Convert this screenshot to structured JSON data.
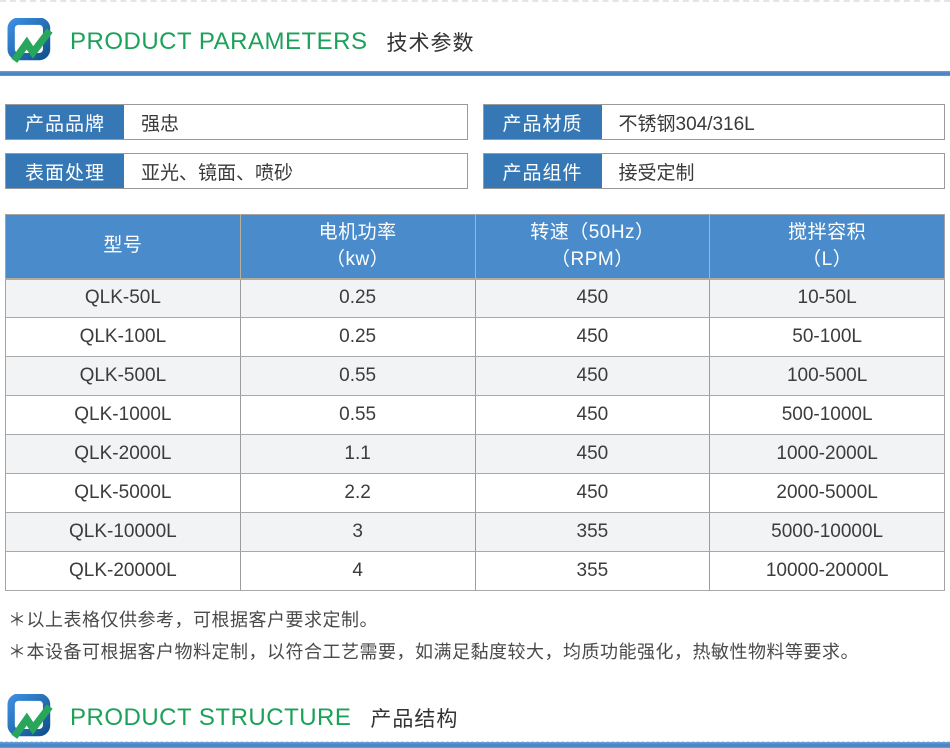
{
  "sections": {
    "parameters": {
      "title_en": "PRODUCT PARAMETERS",
      "title_zh": "技术参数"
    },
    "structure": {
      "title_en": "PRODUCT STRUCTURE",
      "title_zh": "产品结构"
    }
  },
  "fields": [
    {
      "label": "产品品牌",
      "value": "强忠"
    },
    {
      "label": "产品材质",
      "value": "不锈钢304/316L"
    },
    {
      "label": "表面处理",
      "value": "亚光、镜面、喷砂"
    },
    {
      "label": "产品组件",
      "value": "接受定制"
    }
  ],
  "table": {
    "headers": [
      {
        "line1": "型号",
        "line2": ""
      },
      {
        "line1": "电机功率",
        "line2": "（kw）"
      },
      {
        "line1": "转速（50Hz）",
        "line2": "（RPM）"
      },
      {
        "line1": "搅拌容积",
        "line2": "（L）"
      }
    ],
    "rows": [
      [
        "QLK-50L",
        "0.25",
        "450",
        "10-50L"
      ],
      [
        "QLK-100L",
        "0.25",
        "450",
        "50-100L"
      ],
      [
        "QLK-500L",
        "0.55",
        "450",
        "100-500L"
      ],
      [
        "QLK-1000L",
        "0.55",
        "450",
        "500-1000L"
      ],
      [
        "QLK-2000L",
        "1.1",
        "450",
        "1000-2000L"
      ],
      [
        "QLK-5000L",
        "2.2",
        "450",
        "2000-5000L"
      ],
      [
        "QLK-10000L",
        "3",
        "355",
        "5000-10000L"
      ],
      [
        "QLK-20000L",
        "4",
        "355",
        "10000-20000L"
      ]
    ]
  },
  "notes": [
    "＊以上表格仅供参考，可根据客户要求定制。",
    "＊本设备可根据客户物料定制，以符合工艺需要，如满足黏度较大，均质功能强化，热敏性物料等要求。"
  ],
  "colors": {
    "label_blue": "#3578b5",
    "table_header_blue": "#4a8ccb",
    "divider_blue": "#4a86c6",
    "title_green": "#1ca15a",
    "zebra_gray": "#f2f3f5"
  }
}
